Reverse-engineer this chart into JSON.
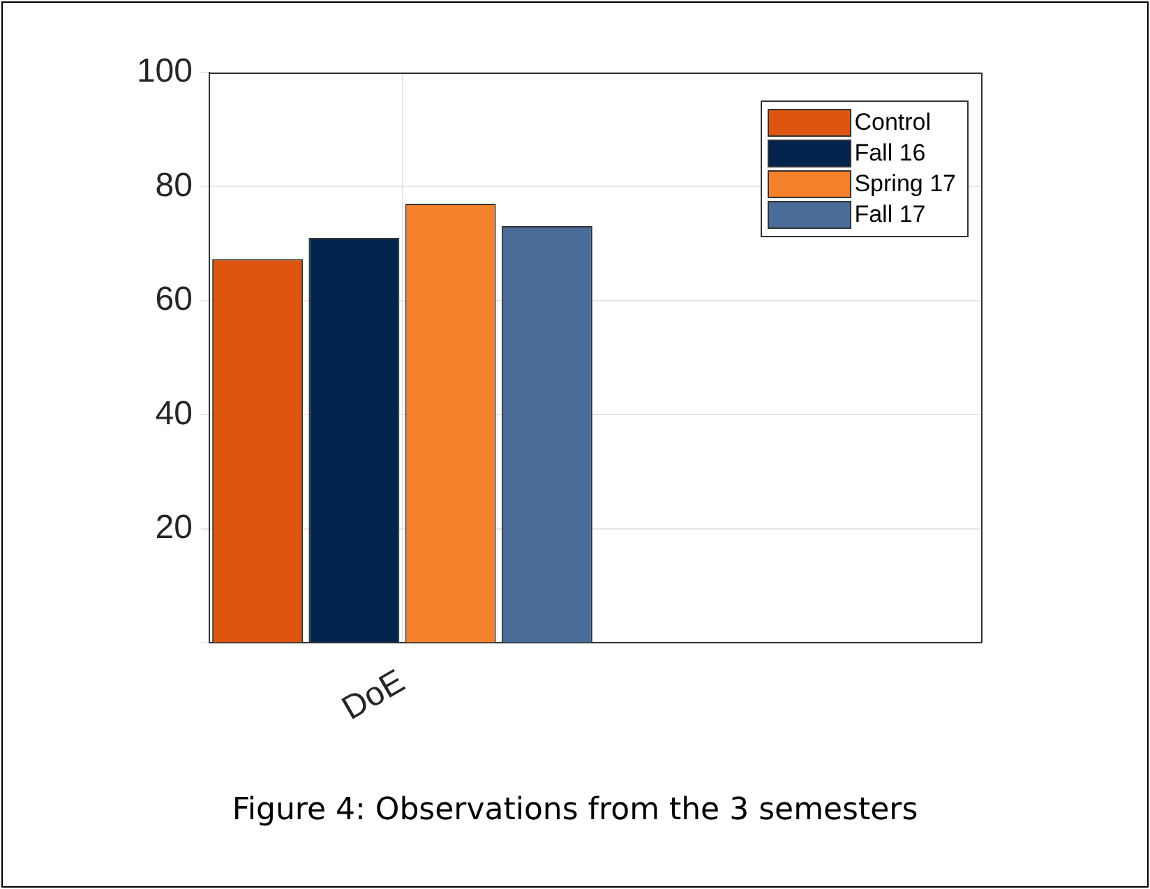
{
  "chart_data": {
    "type": "bar",
    "categories": [
      "DoE",
      null
    ],
    "series": [
      {
        "name": "Control",
        "color": "#dd550f",
        "values": [
          67.3,
          null
        ]
      },
      {
        "name": "Fall 16",
        "color": "#03244d",
        "values": [
          71.0,
          null
        ]
      },
      {
        "name": "Spring 17",
        "color": "#f5812a",
        "values": [
          77.0,
          null
        ]
      },
      {
        "name": "Fall 17",
        "color": "#496c98",
        "values": [
          73.1,
          null
        ]
      }
    ],
    "ylim": [
      0,
      100
    ],
    "yticks": [
      {
        "value": 0,
        "label": null
      },
      20,
      40,
      60,
      80,
      100
    ],
    "grid": true,
    "legend": "top right",
    "annotations": [
      "Figure 4: Observations from the 3 semesters"
    ]
  }
}
